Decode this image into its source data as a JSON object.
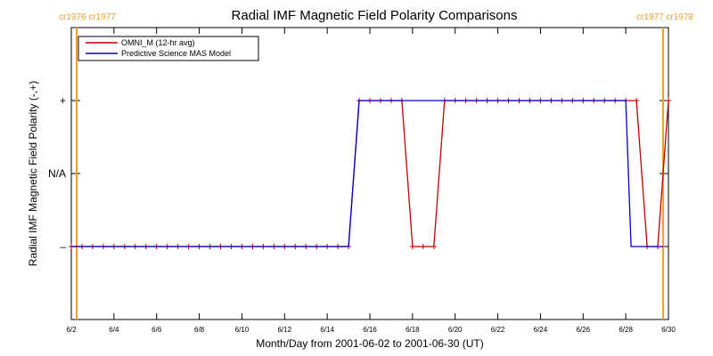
{
  "chart_data": {
    "type": "line",
    "title": "Radial IMF Magnetic Field Polarity Comparisons",
    "xlabel": "Month/Day from 2001-06-02 to 2001-06-30 (UT)",
    "ylabel": "Radial IMF Magnetic Field Polarity (-,+)",
    "x_range": [
      "2001-06-02",
      "2001-06-30"
    ],
    "y_range": [
      -2,
      2
    ],
    "x_ticks": [
      {
        "date": "2001-06-02",
        "label": "6/2"
      },
      {
        "date": "2001-06-04",
        "label": "6/4"
      },
      {
        "date": "2001-06-06",
        "label": "6/6"
      },
      {
        "date": "2001-06-08",
        "label": "6/8"
      },
      {
        "date": "2001-06-10",
        "label": "6/10"
      },
      {
        "date": "2001-06-12",
        "label": "6/12"
      },
      {
        "date": "2001-06-14",
        "label": "6/14"
      },
      {
        "date": "2001-06-16",
        "label": "6/16"
      },
      {
        "date": "2001-06-18",
        "label": "6/18"
      },
      {
        "date": "2001-06-20",
        "label": "6/20"
      },
      {
        "date": "2001-06-22",
        "label": "6/22"
      },
      {
        "date": "2001-06-24",
        "label": "6/24"
      },
      {
        "date": "2001-06-26",
        "label": "6/26"
      },
      {
        "date": "2001-06-28",
        "label": "6/28"
      },
      {
        "date": "2001-06-30",
        "label": "6/30"
      }
    ],
    "y_ticks": [
      {
        "value": 1,
        "label": "+"
      },
      {
        "value": 0,
        "label": "N/A"
      },
      {
        "value": -1,
        "label": "–"
      }
    ],
    "carrington_markers": [
      {
        "date": "2001-06-02 06:00",
        "label": "cr1976 cr1977",
        "side": "left"
      },
      {
        "date": "2001-06-29 18:00",
        "label": "cr1977 cr1978",
        "side": "right"
      }
    ],
    "legend": {
      "placement": "top-left"
    },
    "series": [
      {
        "name": "OMNI_M (12-hr avg)",
        "color": "#c00000",
        "markers": true,
        "points": [
          {
            "x": "2001-06-02 00:00",
            "y": -1
          },
          {
            "x": "2001-06-02 12:00",
            "y": -1
          },
          {
            "x": "2001-06-03 00:00",
            "y": -1
          },
          {
            "x": "2001-06-03 12:00",
            "y": -1
          },
          {
            "x": "2001-06-04 00:00",
            "y": -1
          },
          {
            "x": "2001-06-04 12:00",
            "y": -1
          },
          {
            "x": "2001-06-05 00:00",
            "y": -1
          },
          {
            "x": "2001-06-05 12:00",
            "y": -1
          },
          {
            "x": "2001-06-06 00:00",
            "y": -1
          },
          {
            "x": "2001-06-06 12:00",
            "y": -1
          },
          {
            "x": "2001-06-07 00:00",
            "y": -1
          },
          {
            "x": "2001-06-07 12:00",
            "y": -1
          },
          {
            "x": "2001-06-08 00:00",
            "y": -1
          },
          {
            "x": "2001-06-08 12:00",
            "y": -1
          },
          {
            "x": "2001-06-09 00:00",
            "y": -1
          },
          {
            "x": "2001-06-09 12:00",
            "y": -1
          },
          {
            "x": "2001-06-10 00:00",
            "y": -1
          },
          {
            "x": "2001-06-10 12:00",
            "y": -1
          },
          {
            "x": "2001-06-11 00:00",
            "y": -1
          },
          {
            "x": "2001-06-11 12:00",
            "y": -1
          },
          {
            "x": "2001-06-12 00:00",
            "y": -1
          },
          {
            "x": "2001-06-12 12:00",
            "y": -1
          },
          {
            "x": "2001-06-13 00:00",
            "y": -1
          },
          {
            "x": "2001-06-13 12:00",
            "y": -1
          },
          {
            "x": "2001-06-14 00:00",
            "y": -1
          },
          {
            "x": "2001-06-14 12:00",
            "y": -1
          },
          {
            "x": "2001-06-15 00:00",
            "y": -1
          },
          {
            "x": "2001-06-15 12:00",
            "y": 1
          },
          {
            "x": "2001-06-16 00:00",
            "y": 1
          },
          {
            "x": "2001-06-16 12:00",
            "y": 1
          },
          {
            "x": "2001-06-17 00:00",
            "y": 1
          },
          {
            "x": "2001-06-17 12:00",
            "y": 1
          },
          {
            "x": "2001-06-18 00:00",
            "y": -1
          },
          {
            "x": "2001-06-18 12:00",
            "y": -1
          },
          {
            "x": "2001-06-19 00:00",
            "y": -1
          },
          {
            "x": "2001-06-19 12:00",
            "y": 1
          },
          {
            "x": "2001-06-20 00:00",
            "y": 1
          },
          {
            "x": "2001-06-20 12:00",
            "y": 1
          },
          {
            "x": "2001-06-21 00:00",
            "y": 1
          },
          {
            "x": "2001-06-21 12:00",
            "y": 1
          },
          {
            "x": "2001-06-22 00:00",
            "y": 1
          },
          {
            "x": "2001-06-22 12:00",
            "y": 1
          },
          {
            "x": "2001-06-23 00:00",
            "y": 1
          },
          {
            "x": "2001-06-23 12:00",
            "y": 1
          },
          {
            "x": "2001-06-24 00:00",
            "y": 1
          },
          {
            "x": "2001-06-24 12:00",
            "y": 1
          },
          {
            "x": "2001-06-25 00:00",
            "y": 1
          },
          {
            "x": "2001-06-25 12:00",
            "y": 1
          },
          {
            "x": "2001-06-26 00:00",
            "y": 1
          },
          {
            "x": "2001-06-26 12:00",
            "y": 1
          },
          {
            "x": "2001-06-27 00:00",
            "y": 1
          },
          {
            "x": "2001-06-27 12:00",
            "y": 1
          },
          {
            "x": "2001-06-28 00:00",
            "y": 1
          },
          {
            "x": "2001-06-28 12:00",
            "y": 1
          },
          {
            "x": "2001-06-29 00:00",
            "y": -1
          },
          {
            "x": "2001-06-29 12:00",
            "y": -1
          },
          {
            "x": "2001-06-30 00:00",
            "y": 1
          }
        ]
      },
      {
        "name": "Predictive Science MAS Model",
        "color": "#0000cc",
        "markers": false,
        "points": [
          {
            "x": "2001-06-02 00:00",
            "y": -1
          },
          {
            "x": "2001-06-15 00:00",
            "y": -1
          },
          {
            "x": "2001-06-15 12:00",
            "y": 1
          },
          {
            "x": "2001-06-28 00:00",
            "y": 1
          },
          {
            "x": "2001-06-28 06:00",
            "y": -1
          },
          {
            "x": "2001-06-29 18:00",
            "y": -1
          }
        ]
      }
    ]
  }
}
